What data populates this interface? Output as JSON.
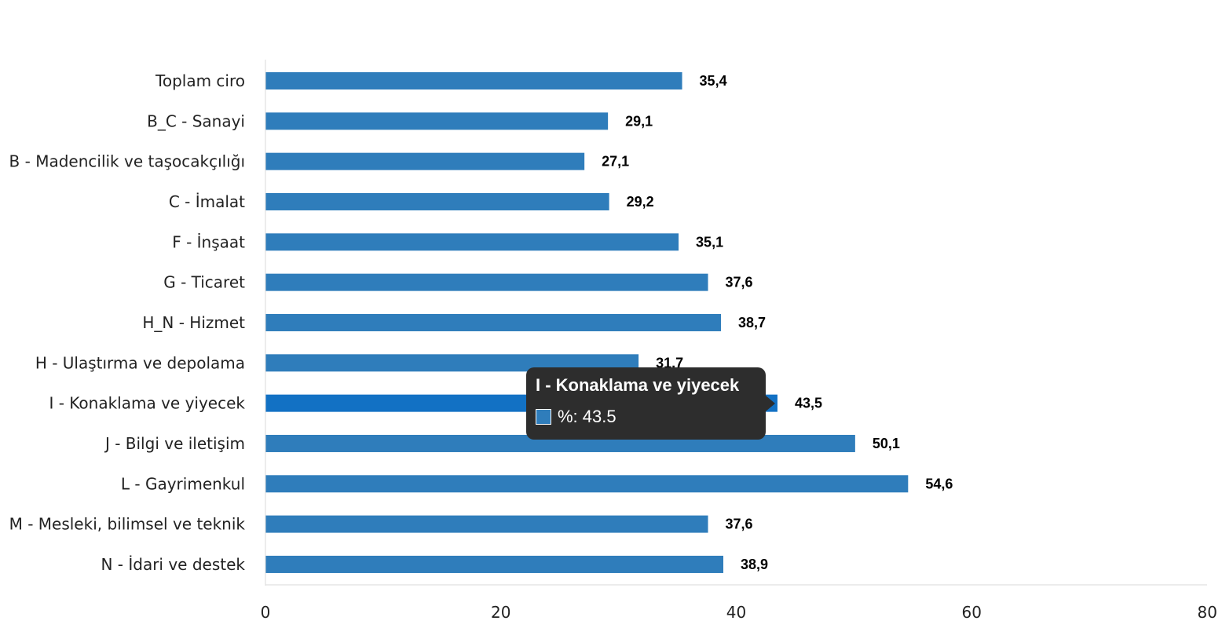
{
  "chart_data": {
    "type": "bar",
    "orientation": "horizontal",
    "categories": [
      "Toplam ciro",
      "B_C - Sanayi",
      "B - Madencilik ve taşocakçılığı",
      "C - İmalat",
      "F - İnşaat",
      "G - Ticaret",
      "H_N - Hizmet",
      "H - Ulaştırma ve depolama",
      "I - Konaklama ve yiyecek",
      "J - Bilgi ve iletişim",
      "L - Gayrimenkul",
      "M - Mesleki, bilimsel ve teknik",
      "N - İdari ve destek"
    ],
    "values": [
      35.4,
      29.1,
      27.1,
      29.2,
      35.1,
      37.6,
      38.7,
      31.7,
      43.5,
      50.1,
      54.6,
      37.6,
      38.9
    ],
    "value_labels": [
      "35,4",
      "29,1",
      "27,1",
      "29,2",
      "35,1",
      "37,6",
      "38,7",
      "31,7",
      "43,5",
      "50,1",
      "54,6",
      "37,6",
      "38,9"
    ],
    "xlim": [
      0,
      80
    ],
    "xticks": [
      0,
      20,
      40,
      60,
      80
    ],
    "xtick_labels": [
      "0",
      "20",
      "40",
      "60",
      "80"
    ],
    "bar_color": "#2f7dbb",
    "highlight_color": "#1271c4",
    "highlight_index": 8,
    "grid": false,
    "legend": "none",
    "title": "",
    "xlabel": "",
    "ylabel": ""
  },
  "tooltip": {
    "title": "I - Konaklama ve yiyecek",
    "row_text": "%: 43.5"
  }
}
